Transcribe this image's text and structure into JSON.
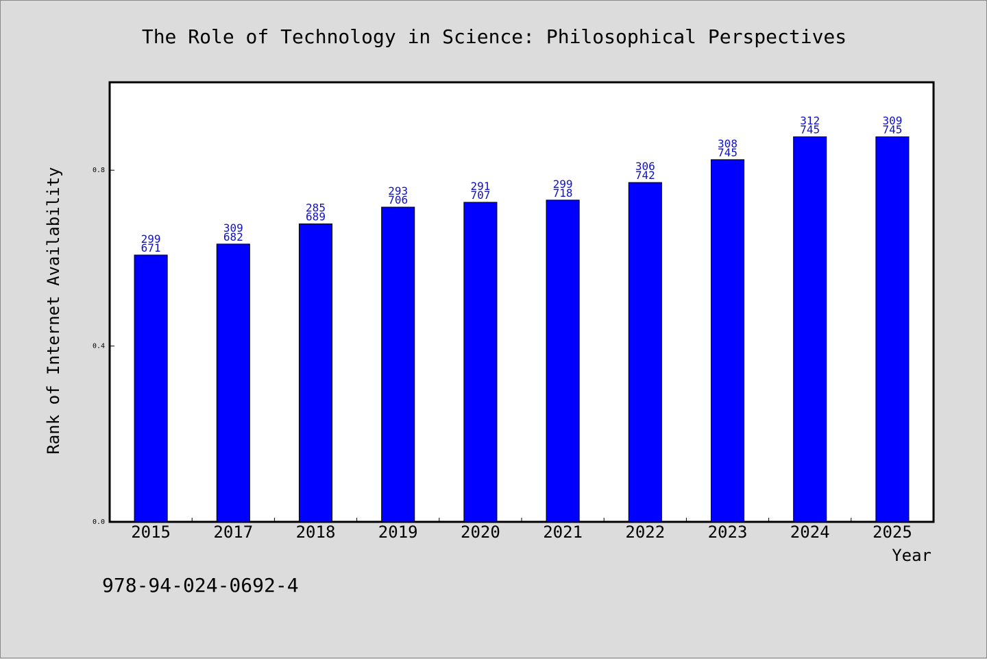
{
  "chart_data": {
    "type": "bar",
    "title": "The Role of Technology in Science: Philosophical Perspectives",
    "xlabel": "Year",
    "ylabel": "Rank of Internet Availability",
    "categories": [
      "2015",
      "2017",
      "2018",
      "2019",
      "2020",
      "2021",
      "2022",
      "2023",
      "2024",
      "2025"
    ],
    "values": [
      0.607,
      0.632,
      0.678,
      0.716,
      0.727,
      0.732,
      0.772,
      0.824,
      0.876,
      0.876
    ],
    "labels_top": [
      "299",
      "309",
      "285",
      "293",
      "291",
      "299",
      "306",
      "308",
      "312",
      "309"
    ],
    "labels_bottom": [
      "671",
      "682",
      "689",
      "706",
      "707",
      "718",
      "742",
      "745",
      "745",
      "745"
    ],
    "yticks": [
      0.0,
      0.4,
      0.8
    ],
    "ytick_labels": [
      "0.0",
      "0.4",
      "0.8"
    ],
    "ylim": [
      0,
      1.0
    ],
    "grid": false,
    "bar_color": "#0000ff",
    "label_color": "#1010c8"
  },
  "footer": {
    "isbn": "978-94-024-0692-4"
  }
}
